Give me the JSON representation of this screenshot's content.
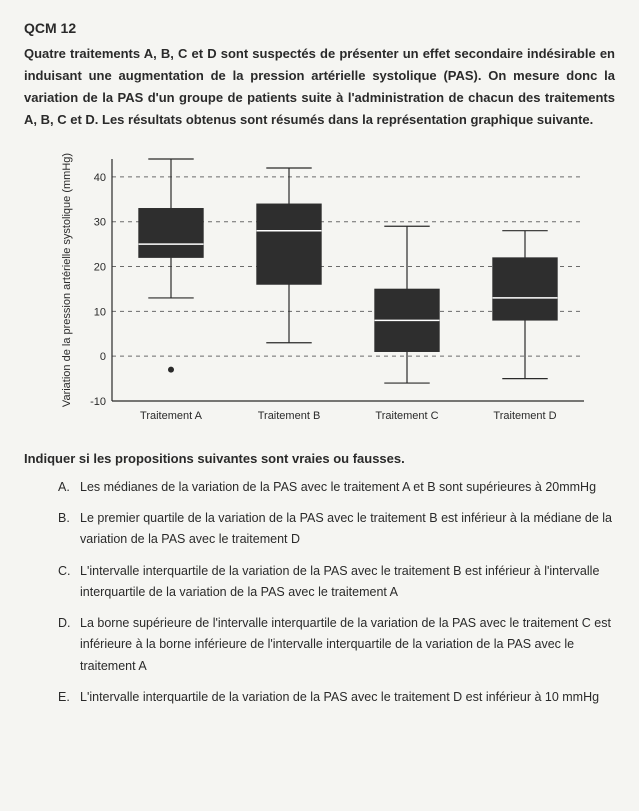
{
  "title": "QCM 12",
  "intro": "Quatre traitements A, B, C et D sont suspectés de présenter un effet secondaire indésirable en induisant une augmentation de la pression artérielle systolique (PAS). On mesure donc la variation de la PAS d'un groupe de patients suite à l'administration de chacun des traitements A, B, C et D. Les résultats obtenus sont résumés dans la représentation graphique suivante.",
  "chart": {
    "type": "boxplot",
    "ylabel": "Variation de la pression artérielle systolique (mmHg)",
    "ylabel_fontsize": 11,
    "ylim": [
      -10,
      44
    ],
    "ytick_values": [
      -10,
      0,
      10,
      20,
      30,
      40
    ],
    "ytick_labels": [
      "-10",
      "0",
      "10",
      "20",
      "30",
      "40"
    ],
    "grid_color": "#6b6b6b",
    "grid_dash": "4,4",
    "background_color": "#f5f5f2",
    "axis_color": "#2a2a2a",
    "box_fill": "#2e2e2e",
    "median_color": "#ffffff",
    "whisker_color": "#2a2a2a",
    "outlier_color": "#2a2a2a",
    "categories": [
      "Traitement A",
      "Traitement B",
      "Traitement C",
      "Traitement D"
    ],
    "category_fontsize": 11,
    "boxes": [
      {
        "min": 13,
        "q1": 22,
        "median": 25,
        "q3": 33,
        "max": 44,
        "outliers": [
          -3
        ]
      },
      {
        "min": 3,
        "q1": 16,
        "median": 28,
        "q3": 34,
        "max": 42,
        "outliers": []
      },
      {
        "min": -6,
        "q1": 1,
        "median": 8,
        "q3": 15,
        "max": 29,
        "outliers": []
      },
      {
        "min": -5,
        "q1": 8,
        "median": 13,
        "q3": 22,
        "max": 28,
        "outliers": []
      }
    ]
  },
  "prompt": "Indiquer si les propositions suivantes sont vraies ou fausses.",
  "options": [
    {
      "letter": "A.",
      "text": "Les médianes de la variation de la PAS avec le traitement A et B sont supérieures à 20mmHg"
    },
    {
      "letter": "B.",
      "text": "Le premier quartile de la variation de la PAS avec le traitement B est inférieur à la médiane de la variation de la PAS avec le traitement D"
    },
    {
      "letter": "C.",
      "text": "L'intervalle interquartile de la variation de la PAS avec le traitement B est inférieur à l'intervalle interquartile de la variation de la PAS avec le traitement A"
    },
    {
      "letter": "D.",
      "text": "La borne supérieure de l'intervalle interquartile de la variation de la PAS avec le traitement C est inférieure à la borne inférieure de l'intervalle interquartile de la variation de la PAS avec le traitement A"
    },
    {
      "letter": "E.",
      "text": "L'intervalle interquartile de la variation de la PAS avec le traitement D est inférieur à 10 mmHg"
    }
  ]
}
